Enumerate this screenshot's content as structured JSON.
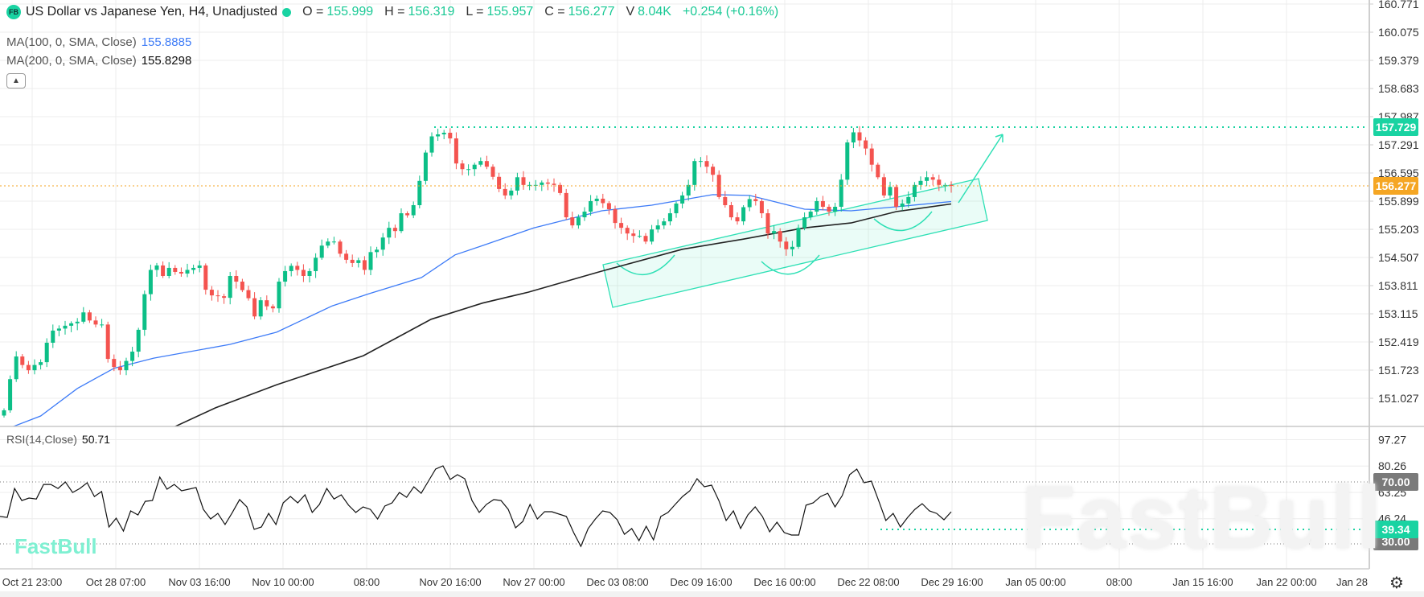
{
  "header": {
    "logo_text": "FB",
    "title": "US Dollar vs Japanese Yen, H4, Unadjusted",
    "o_label": "O =",
    "o": "155.999",
    "h_label": "H =",
    "h": "156.319",
    "l_label": "L =",
    "l": "155.957",
    "c_label": "C =",
    "c": "156.277",
    "v_label": "V",
    "v": "8.04K",
    "change": "+0.254 (+0.16%)"
  },
  "indicators": {
    "ma100_label": "MA(100, 0, SMA, Close)",
    "ma100_value": "155.8885",
    "ma200_label": "MA(200, 0, SMA, Close)",
    "ma200_value": "155.8298",
    "rsi_label": "RSI(14,Close)",
    "rsi_value": "50.71"
  },
  "watermark": "FastBull",
  "logo": "FastBull",
  "colors": {
    "up": "#0cbf87",
    "down": "#f4534f",
    "ma100": "#3d7bf7",
    "ma200": "#222222",
    "accent": "#19d3a2",
    "last_price": "#f5a623",
    "rsi_level": "#7a7a7a"
  },
  "chart_data": {
    "type": "candlestick",
    "symbol": "USDJPY",
    "timeframe": "H4",
    "x_tick_labels": [
      "Oct 21 23:00",
      "Oct 28 07:00",
      "Nov 03 16:00",
      "Nov 10 00:00",
      "08:00",
      "Nov 20 16:00",
      "Nov 27 00:00",
      "Dec 03 08:00",
      "Dec 09 16:00",
      "Dec 16 00:00",
      "Dec 22 08:00",
      "Dec 29 16:00",
      "Jan 05 00:00",
      "08:00",
      "Jan 15 16:00",
      "Jan 22 00:00",
      "Jan 28"
    ],
    "price_ticks": [
      "160.771",
      "160.075",
      "159.379",
      "158.683",
      "157.987",
      "157.291",
      "156.595",
      "155.899",
      "155.203",
      "154.507",
      "153.811",
      "153.115",
      "152.419",
      "151.723",
      "151.027"
    ],
    "ylim": [
      150.3,
      160.8
    ],
    "closes": [
      150.73,
      151.5,
      152.06,
      151.85,
      151.72,
      151.85,
      151.92,
      152.4,
      152.7,
      152.75,
      152.82,
      152.88,
      152.92,
      153.15,
      152.95,
      152.85,
      152.85,
      152.0,
      151.8,
      151.72,
      151.95,
      152.18,
      152.72,
      153.6,
      154.2,
      154.31,
      154.05,
      154.25,
      154.15,
      154.11,
      154.2,
      154.25,
      154.31,
      153.71,
      153.57,
      153.55,
      153.51,
      154.05,
      153.91,
      153.7,
      153.5,
      153.05,
      153.45,
      153.3,
      153.25,
      153.91,
      154.17,
      154.3,
      154.2,
      154.05,
      154.17,
      154.5,
      154.8,
      154.9,
      154.9,
      154.6,
      154.45,
      154.37,
      154.44,
      154.2,
      154.64,
      154.7,
      155.0,
      155.24,
      155.16,
      155.6,
      155.55,
      155.8,
      156.4,
      157.1,
      157.5,
      157.55,
      157.59,
      157.45,
      156.83,
      156.69,
      156.69,
      156.8,
      156.89,
      156.75,
      156.5,
      156.2,
      156.04,
      156.16,
      156.49,
      156.3,
      156.3,
      156.3,
      156.36,
      156.33,
      156.3,
      156.1,
      155.5,
      155.3,
      155.5,
      155.64,
      155.9,
      155.96,
      155.85,
      155.7,
      155.36,
      155.24,
      155.1,
      155.04,
      155.04,
      154.9,
      155.2,
      155.3,
      155.4,
      155.6,
      155.84,
      156.04,
      156.3,
      156.89,
      156.89,
      156.75,
      156.55,
      156.0,
      155.8,
      155.5,
      155.4,
      155.75,
      155.95,
      155.9,
      155.6,
      155.1,
      155.16,
      154.9,
      154.71,
      154.77,
      155.24,
      155.5,
      155.64,
      155.9,
      155.76,
      155.64,
      155.76,
      156.43,
      157.35,
      157.6,
      157.4,
      157.2,
      156.8,
      156.49,
      156.04,
      156.25,
      155.76,
      155.84,
      156.0,
      156.3,
      156.4,
      156.49,
      156.43,
      156.3,
      156.3,
      156.277
    ],
    "ma100": [
      [
        1,
        150.3
      ],
      [
        6,
        150.59
      ],
      [
        12,
        151.27
      ],
      [
        18,
        151.77
      ],
      [
        24.5,
        152.02
      ],
      [
        37,
        152.36
      ],
      [
        44.6,
        152.66
      ],
      [
        53.7,
        153.31
      ],
      [
        59.7,
        153.61
      ],
      [
        68.3,
        154.01
      ],
      [
        73.8,
        154.57
      ],
      [
        78.3,
        154.8
      ],
      [
        86.7,
        155.24
      ],
      [
        97.8,
        155.66
      ],
      [
        106,
        155.8
      ],
      [
        116,
        156.06
      ],
      [
        122,
        156.04
      ],
      [
        131,
        155.7
      ],
      [
        138.6,
        155.66
      ],
      [
        146,
        155.76
      ],
      [
        155,
        155.8885
      ]
    ],
    "ma200": [
      [
        23,
        150.0
      ],
      [
        28,
        150.33
      ],
      [
        34.6,
        150.79
      ],
      [
        44.6,
        151.36
      ],
      [
        58.8,
        152.08
      ],
      [
        69.9,
        152.98
      ],
      [
        78.3,
        153.38
      ],
      [
        85.8,
        153.65
      ],
      [
        97.8,
        154.17
      ],
      [
        111,
        154.71
      ],
      [
        121,
        154.96
      ],
      [
        131,
        155.24
      ],
      [
        138.6,
        155.36
      ],
      [
        146,
        155.64
      ],
      [
        155,
        155.8298
      ]
    ],
    "horizontal_level": "157.729",
    "last_price": "156.277",
    "rsi": {
      "ticks": [
        "97.27",
        "80.26",
        "63.25",
        "46.24"
      ],
      "overbought": "70.00",
      "oversold": "30.00",
      "level": "39.34",
      "values": [
        47.7,
        47.1,
        65.8,
        58,
        59.6,
        59,
        68.4,
        68.4,
        65.8,
        70,
        63.2,
        65.8,
        69.5,
        60.6,
        63.8,
        40.9,
        46.6,
        38.3,
        51.3,
        48.7,
        57.5,
        58,
        73.1,
        65.3,
        68.4,
        64.3,
        65.3,
        66.4,
        52.3,
        46.1,
        49.7,
        42.5,
        50.3,
        58.6,
        53.9,
        39.4,
        40.9,
        49.7,
        42.5,
        56.5,
        60.6,
        56.5,
        61.7,
        50.3,
        55.5,
        65.8,
        59,
        61.7,
        55,
        50.3,
        53.9,
        52.3,
        46.1,
        54.4,
        56.5,
        63.2,
        60.1,
        66.9,
        62.7,
        70.5,
        78.3,
        80.4,
        71.6,
        74.7,
        72.1,
        58,
        50.3,
        55.5,
        58.6,
        58,
        52.3,
        40.4,
        44.5,
        55.5,
        46.1,
        50.8,
        50.8,
        49.2,
        47.7,
        37.3,
        28.4,
        39.9,
        46.1,
        51.3,
        50.3,
        45.6,
        36.2,
        39.9,
        32.1,
        41.4,
        32.6,
        47.7,
        50.3,
        55.5,
        60.6,
        64.3,
        72.1,
        66.9,
        67.9,
        58,
        45.1,
        51.3,
        39.9,
        48.7,
        53.9,
        47.7,
        37.8,
        44,
        37.3,
        35.7,
        35.7,
        55,
        56.5,
        60.6,
        62.7,
        53.9,
        61.2,
        74.7,
        78.3,
        69.5,
        70.5,
        58,
        45.1,
        49.7,
        40.9,
        47.1,
        52.3,
        56,
        51.3,
        49.7,
        45.6,
        50.71
      ]
    }
  }
}
